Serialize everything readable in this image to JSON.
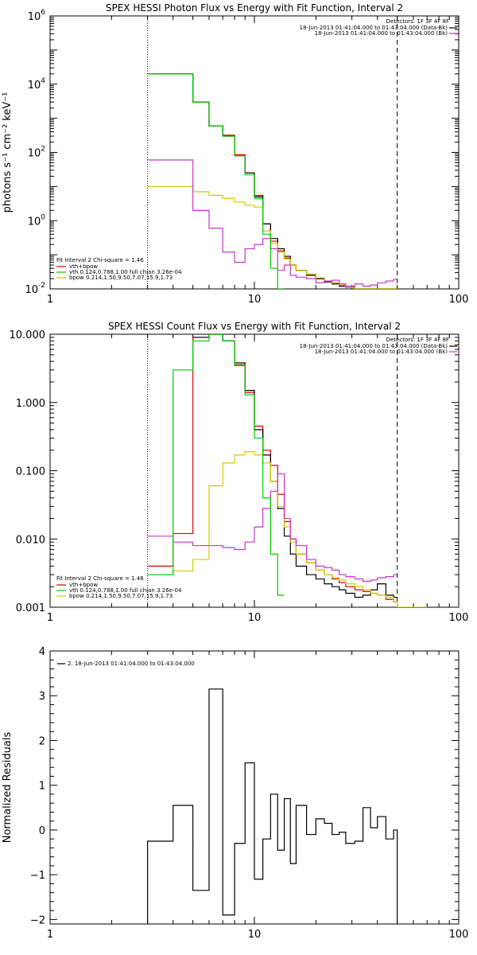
{
  "chart_data": [
    {
      "type": "line",
      "title": "SPEX HESSI Photon Flux vs Energy with Fit Function, Interval 2",
      "ylabel": "photons s⁻¹ cm⁻² keV⁻¹",
      "xlabel": "",
      "xscale": "log",
      "yscale": "log",
      "xlim": [
        1,
        100
      ],
      "ylim": [
        0.01,
        1000000
      ],
      "xticks": [
        "1",
        "10",
        "100"
      ],
      "yticks": [
        {
          "v": 1000000,
          "b": "10",
          "e": "6"
        },
        {
          "v": 10000,
          "b": "10",
          "e": "4"
        },
        {
          "v": 100,
          "b": "10",
          "e": "2"
        },
        {
          "v": 1,
          "b": "10",
          "e": "0"
        },
        {
          "v": 0.01,
          "b": "10",
          "e": "-2"
        }
      ],
      "vlines": [
        {
          "x": 3,
          "style": "dotted"
        },
        {
          "x": 50,
          "style": "dashed"
        }
      ],
      "legend_right": {
        "position": "top-right",
        "header": "Detectors: 1F 3F 4F 8F",
        "items": [
          {
            "text": "18-Jun-2013 01:41:04.000 to 01:43:04.000 (Data-Bk)",
            "color": "#000000"
          },
          {
            "text": "18-Jun-2013 01:41:04.000 to 01:43:04.000 (Bk)",
            "color": "#cc33cc"
          }
        ]
      },
      "legend_left": {
        "position": "bottom-left",
        "header": "Fit Interval 2   Chi-square = 1.46",
        "items": [
          {
            "text": "vth+bpow",
            "color": "#dd0000"
          },
          {
            "text": "vth 0.124,0.788,1.00  full chian 3.26e-04",
            "color": "#00cc00"
          },
          {
            "text": "bpow 0.214,1.50,9.50,7.07,15.9,1.73",
            "color": "#cccc00"
          }
        ]
      },
      "edges": [
        3,
        4,
        5,
        6,
        7,
        8,
        9,
        10,
        11,
        12,
        13,
        14,
        15,
        16,
        18,
        20,
        22,
        24,
        26,
        28,
        31,
        34,
        37,
        40,
        44,
        48,
        50
      ],
      "series": [
        {
          "name": "Data-Bk",
          "color": "#000000",
          "values": [
            20000,
            20000,
            3000,
            600,
            300,
            80,
            25,
            5,
            0.8,
            0.3,
            0.15,
            0.09,
            0.05,
            0.035,
            0.025,
            0.02,
            0.016,
            0.014,
            0.012,
            0.011,
            0.01,
            0.01,
            0.01,
            0.01,
            0.01,
            0.01
          ]
        },
        {
          "name": "vth+bpow",
          "color": "#dd0000",
          "values": [
            20000,
            20000,
            3000,
            600,
            320,
            85,
            25,
            5.5,
            0.8,
            0.25,
            0.13,
            0.08,
            0.05,
            0.035,
            0.026,
            0.02,
            0.017,
            0.015,
            0.013,
            0.012,
            0.01,
            0.01,
            0.01,
            0.01,
            0.01,
            0.01
          ]
        },
        {
          "name": "vth",
          "color": "#00cc00",
          "values": [
            20000,
            20000,
            3000,
            600,
            300,
            80,
            22,
            4.5,
            0.4,
            0.04,
            0.01
          ]
        },
        {
          "name": "bpow",
          "color": "#cccc00",
          "values": [
            10,
            10,
            7,
            5.5,
            4.5,
            3.5,
            2.8,
            2.5,
            0.5,
            0.22,
            0.12,
            0.075,
            0.05,
            0.035,
            0.027,
            0.021,
            0.017,
            0.015,
            0.013,
            0.011,
            0.01,
            0.01,
            0.01,
            0.01,
            0.01,
            0.01
          ]
        },
        {
          "name": "Bk",
          "color": "#cc33cc",
          "values": [
            60,
            60,
            2,
            0.6,
            0.12,
            0.06,
            0.15,
            0.2,
            0.3,
            0.15,
            0.035,
            0.05,
            0.025,
            0.022,
            0.02,
            0.015,
            0.017,
            0.018,
            0.014,
            0.012,
            0.014,
            0.012,
            0.013,
            0.015,
            0.017,
            0.019
          ]
        }
      ]
    },
    {
      "type": "line",
      "title": "SPEX HESSI Count Flux vs Energy with Fit Function, Interval 2",
      "xlabel": "",
      "ylabel": "",
      "xscale": "log",
      "yscale": "log",
      "xlim": [
        1,
        100
      ],
      "ylim": [
        0.001,
        10
      ],
      "xticks": [
        "1",
        "10",
        "100"
      ],
      "yticks": [
        {
          "v": 10,
          "t": "10.000"
        },
        {
          "v": 1,
          "t": "1.000"
        },
        {
          "v": 0.1,
          "t": "0.100"
        },
        {
          "v": 0.01,
          "t": "0.010"
        },
        {
          "v": 0.001,
          "t": "0.001"
        }
      ],
      "vlines": [
        {
          "x": 3,
          "style": "dotted"
        },
        {
          "x": 50,
          "style": "dashed"
        }
      ],
      "legend_right": {
        "position": "top-right",
        "header": "Detectors: 1F 3F 4F 8F",
        "items": [
          {
            "text": "18-Jun-2013 01:41:04.000 to 01:43:04.000 (Data-Bk)",
            "color": "#000000"
          },
          {
            "text": "18-Jun-2013 01:41:04.000 to 01:43:04.000 (Bk)",
            "color": "#cc33cc"
          }
        ]
      },
      "legend_left": {
        "position": "bottom-left",
        "header": "Fit Interval 2   Chi-square = 1.46",
        "items": [
          {
            "text": "vth+bpow",
            "color": "#dd0000"
          },
          {
            "text": "vth 0.124,0.788,1.00  full chian 3.26e-04",
            "color": "#00cc00"
          },
          {
            "text": "bpow 0.214,1.50,9.50,7.07,15.9,1.73",
            "color": "#cccc00"
          }
        ]
      },
      "edges": [
        3,
        4,
        5,
        6,
        7,
        8,
        9,
        10,
        11,
        12,
        13,
        14,
        15,
        16,
        18,
        20,
        22,
        24,
        26,
        28,
        31,
        34,
        37,
        40,
        44,
        48,
        50,
        60,
        70
      ],
      "series": [
        {
          "name": "Data-Bk",
          "color": "#000000",
          "values": [
            null,
            null,
            9,
            10,
            8,
            3.8,
            1.5,
            0.4,
            0.17,
            0.07,
            0.028,
            0.011,
            0.006,
            0.004,
            0.003,
            0.0026,
            0.0022,
            0.002,
            0.0018,
            0.0016,
            0.0014,
            0.0015,
            0.0018,
            0.0022,
            0.0015,
            0.0014
          ]
        },
        {
          "name": "vth+bpow",
          "color": "#dd0000",
          "values": [
            0.004,
            0.012,
            9,
            10,
            8,
            3.5,
            1.4,
            0.45,
            0.2,
            0.12,
            0.045,
            0.018,
            0.01,
            0.006,
            0.0045,
            0.0035,
            0.003,
            0.0026,
            0.0023,
            0.002,
            0.0018,
            0.0017,
            0.0016,
            0.0015,
            0.0013,
            0.0012
          ]
        },
        {
          "name": "vth",
          "color": "#00cc00",
          "values": [
            0.003,
            3,
            8,
            10,
            8,
            3.6,
            1.3,
            0.3,
            0.04,
            0.006,
            0.0015
          ]
        },
        {
          "name": "bpow",
          "color": "#cccc00",
          "values": [
            0.003,
            0.0034,
            0.005,
            0.06,
            0.13,
            0.17,
            0.19,
            0.17,
            0.13,
            0.07,
            0.03,
            0.015,
            0.009,
            0.006,
            0.0045,
            0.0035,
            0.003,
            0.0027,
            0.0025,
            0.0022,
            0.002,
            0.0018,
            0.0016,
            0.0015,
            0.0014,
            0.0012,
            0.001,
            0.0008
          ]
        },
        {
          "name": "Bk",
          "color": "#cc33cc",
          "values": [
            0.011,
            0.009,
            0.008,
            0.008,
            0.0075,
            0.007,
            0.009,
            0.015,
            0.028,
            0.05,
            0.09,
            0.02,
            0.01,
            0.008,
            0.005,
            0.004,
            0.0038,
            0.0035,
            0.003,
            0.0028,
            0.0026,
            0.0024,
            0.0025,
            0.0027,
            0.0028,
            0.003
          ]
        }
      ]
    },
    {
      "type": "line",
      "title": "",
      "ylabel": "Normalized Residuals",
      "xlabel": "",
      "xscale": "log",
      "yscale": "linear",
      "xlim": [
        1,
        100
      ],
      "ylim": [
        -2.1,
        4
      ],
      "xticks": [
        "1",
        "10",
        "100"
      ],
      "yticks": [
        {
          "v": 4,
          "t": "4"
        },
        {
          "v": 3,
          "t": "3"
        },
        {
          "v": 2,
          "t": "2"
        },
        {
          "v": 1,
          "t": "1"
        },
        {
          "v": 0,
          "t": "0"
        },
        {
          "v": -1,
          "t": "−1"
        },
        {
          "v": -2,
          "t": "−2"
        }
      ],
      "legend": {
        "position": "top-left",
        "items": [
          {
            "text": "2. 18-Jun-2013 01:41:04.000 to 01:43:04.000",
            "color": "#000000"
          }
        ]
      },
      "edges": [
        3,
        4,
        5,
        6,
        7,
        8,
        9,
        10,
        11,
        12,
        13,
        14,
        15,
        16,
        18,
        20,
        22,
        24,
        26,
        28,
        31,
        34,
        37,
        40,
        44,
        48,
        50
      ],
      "series": [
        {
          "name": "residuals",
          "color": "#000000",
          "values": [
            -0.25,
            0.55,
            -1.35,
            3.15,
            -1.9,
            -0.3,
            1.5,
            -1.1,
            -0.2,
            0.8,
            -0.45,
            0.7,
            -0.75,
            0.55,
            -0.1,
            0.25,
            0.15,
            -0.1,
            -0.05,
            -0.3,
            -0.25,
            0.5,
            0.05,
            0.3,
            -0.2,
            0.0
          ]
        }
      ]
    }
  ]
}
